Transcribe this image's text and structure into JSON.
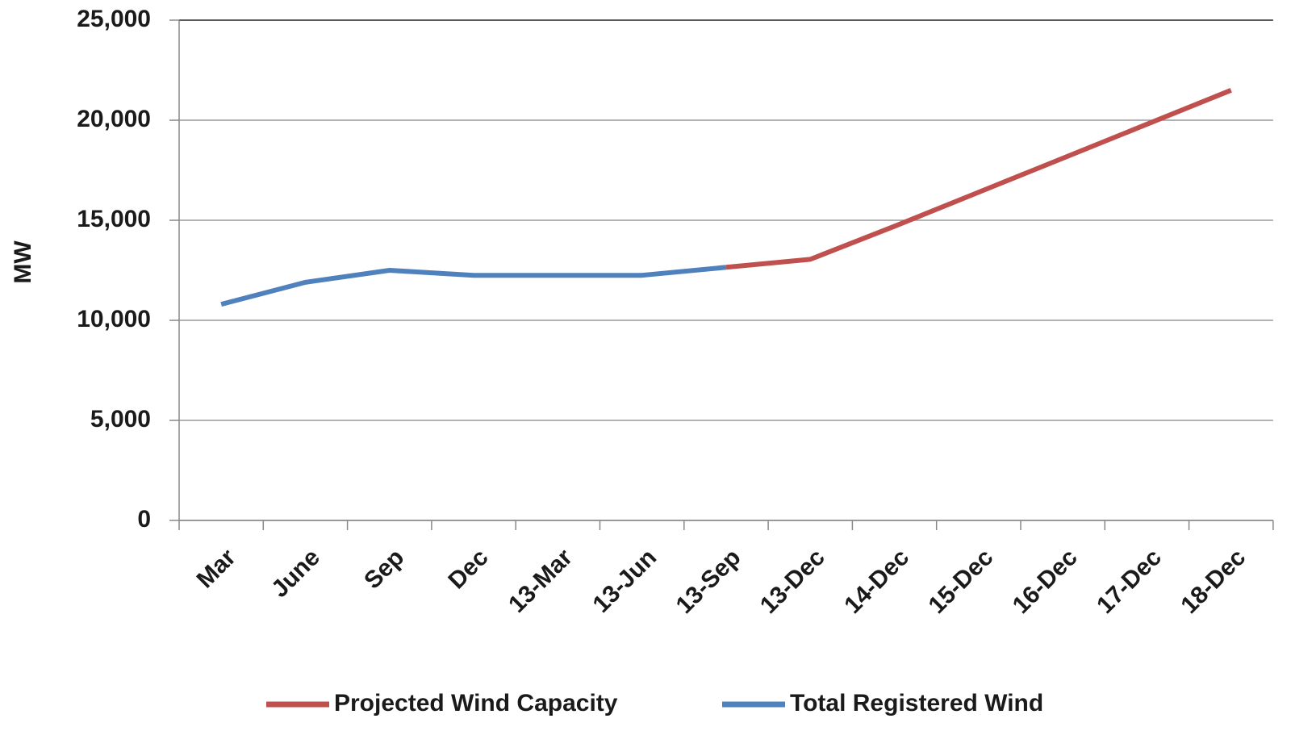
{
  "chart_data": {
    "type": "line",
    "ylabel": "MW",
    "categories": [
      "Mar",
      "June",
      "Sep",
      "Dec",
      "13-Mar",
      "13-Jun",
      "13-Sep",
      "13-Dec",
      "14-Dec",
      "15-Dec",
      "16-Dec",
      "17-Dec",
      "18-Dec"
    ],
    "series": [
      {
        "name": "Projected Wind Capacity",
        "color": "#c0504d",
        "values": [
          null,
          null,
          null,
          null,
          null,
          null,
          12650,
          13050,
          14700,
          16400,
          18100,
          19800,
          21500
        ]
      },
      {
        "name": "Total Registered Wind",
        "color": "#4f81bd",
        "values": [
          10800,
          11900,
          12500,
          12250,
          12250,
          12250,
          12650,
          null,
          null,
          null,
          null,
          null,
          null
        ]
      }
    ],
    "ylim": [
      0,
      25000
    ],
    "yticks": [
      0,
      {
        "value": 5000,
        "label": "5,000"
      },
      {
        "value": 10000,
        "label": "10,000"
      },
      {
        "value": 15000,
        "label": "15,000"
      },
      {
        "value": 20000,
        "label": "20,000"
      },
      {
        "value": 25000,
        "label": "25,000"
      }
    ],
    "grid": true,
    "legend": "bottom"
  }
}
